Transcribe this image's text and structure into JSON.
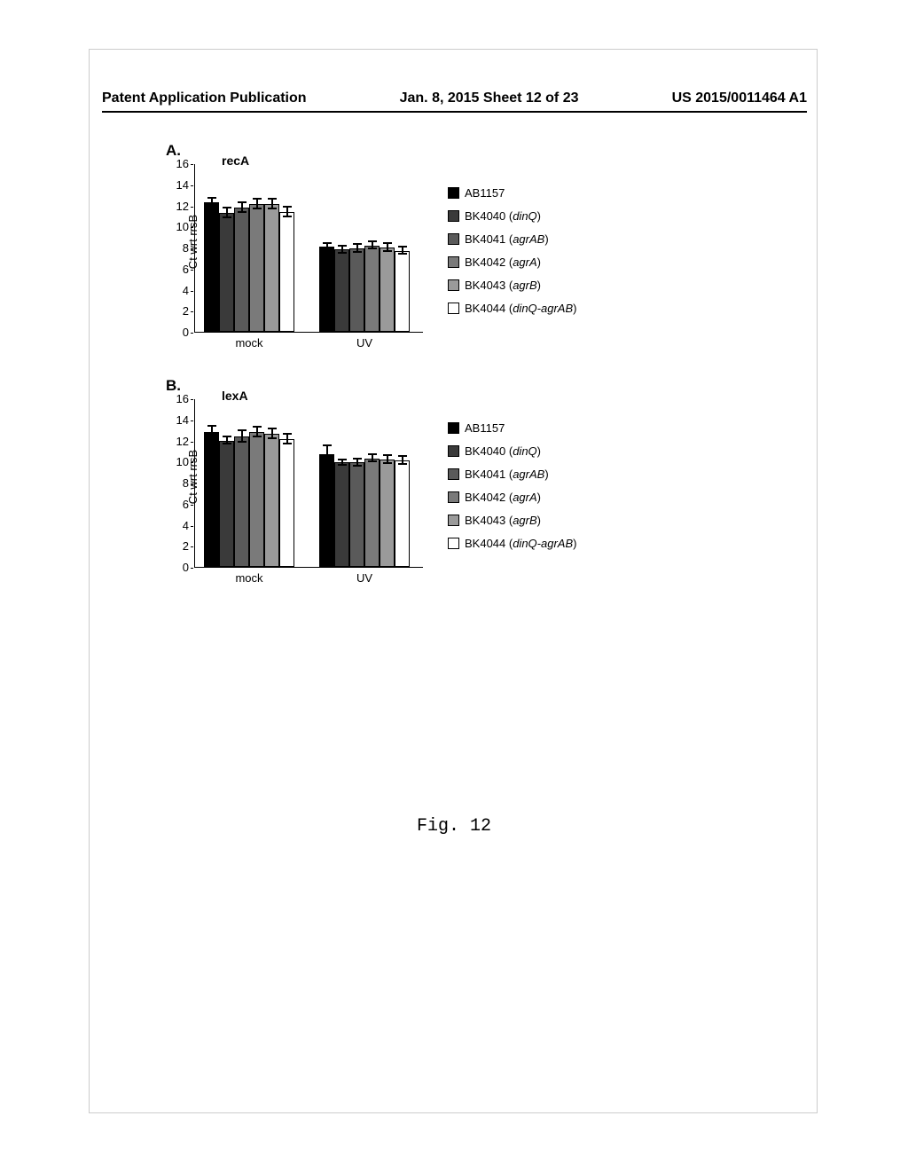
{
  "header": {
    "left": "Patent Application Publication",
    "center": "Jan. 8, 2015  Sheet 12 of 23",
    "right": "US 2015/0011464 A1"
  },
  "figure_caption": "Fig. 12",
  "colors": {
    "bar_fills": [
      "#000000",
      "#3a3a3a",
      "#5a5a5a",
      "#7a7a7a",
      "#9a9a9a",
      "#ffffff"
    ],
    "bar_border": "#000000"
  },
  "legend": {
    "items": [
      {
        "label": "AB1157",
        "italic": ""
      },
      {
        "label": "BK4040 (",
        "italic": "dinQ",
        "suffix": ")"
      },
      {
        "label": "BK4041 (",
        "italic": "agrAB",
        "suffix": ")"
      },
      {
        "label": "BK4042 (",
        "italic": "agrA",
        "suffix": ")"
      },
      {
        "label": "BK4043 (",
        "italic": "agrB",
        "suffix": ")"
      },
      {
        "label": "BK4044 (",
        "italic": "dinQ-agrAB",
        "suffix": ")"
      }
    ]
  },
  "y_axis": {
    "label": "Ct wrt rrsB",
    "ticks": [
      0,
      2,
      4,
      6,
      8,
      10,
      12,
      14,
      16
    ],
    "max": 16
  },
  "charts": [
    {
      "panel": "A.",
      "title": "recA",
      "groups": [
        {
          "label": "mock",
          "values": [
            12.3,
            11.3,
            11.8,
            12.1,
            12.1,
            11.4
          ],
          "errors": [
            0.4,
            0.5,
            0.5,
            0.5,
            0.5,
            0.5
          ]
        },
        {
          "label": "UV",
          "values": [
            8.1,
            7.8,
            7.9,
            8.2,
            8.0,
            7.7
          ],
          "errors": [
            0.3,
            0.4,
            0.4,
            0.4,
            0.4,
            0.4
          ]
        }
      ]
    },
    {
      "panel": "B.",
      "title": "lexA",
      "groups": [
        {
          "label": "mock",
          "values": [
            12.8,
            12.0,
            12.4,
            12.8,
            12.6,
            12.1
          ],
          "errors": [
            0.6,
            0.4,
            0.6,
            0.5,
            0.5,
            0.5
          ]
        },
        {
          "label": "UV",
          "values": [
            10.7,
            9.9,
            9.9,
            10.3,
            10.2,
            10.1
          ],
          "errors": [
            0.8,
            0.3,
            0.4,
            0.4,
            0.4,
            0.4
          ]
        }
      ]
    }
  ]
}
